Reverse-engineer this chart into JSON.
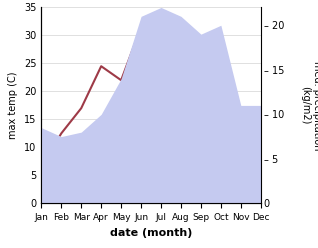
{
  "months": [
    "Jan",
    "Feb",
    "Mar",
    "Apr",
    "May",
    "Jun",
    "Jul",
    "Aug",
    "Sep",
    "Oct",
    "Nov",
    "Dec"
  ],
  "temperature": [
    6.5,
    12.5,
    17.0,
    24.5,
    22.0,
    31.5,
    27.5,
    31.0,
    22.0,
    14.0,
    12.0,
    12.0
  ],
  "precipitation": [
    8.5,
    7.5,
    8.0,
    10.0,
    14.0,
    21.0,
    22.0,
    21.0,
    19.0,
    20.0,
    11.0,
    11.0
  ],
  "temp_color": "#9e3a47",
  "precip_fill_color": "#c5caf0",
  "temp_ylim": [
    0,
    35
  ],
  "precip_ylim": [
    0,
    22
  ],
  "precip_yticks": [
    0,
    5,
    10,
    15,
    20
  ],
  "temp_yticks": [
    0,
    5,
    10,
    15,
    20,
    25,
    30,
    35
  ],
  "ylabel_left": "max temp (C)",
  "ylabel_right": "med. precipitation\n(kg/m2)",
  "xlabel": "date (month)"
}
